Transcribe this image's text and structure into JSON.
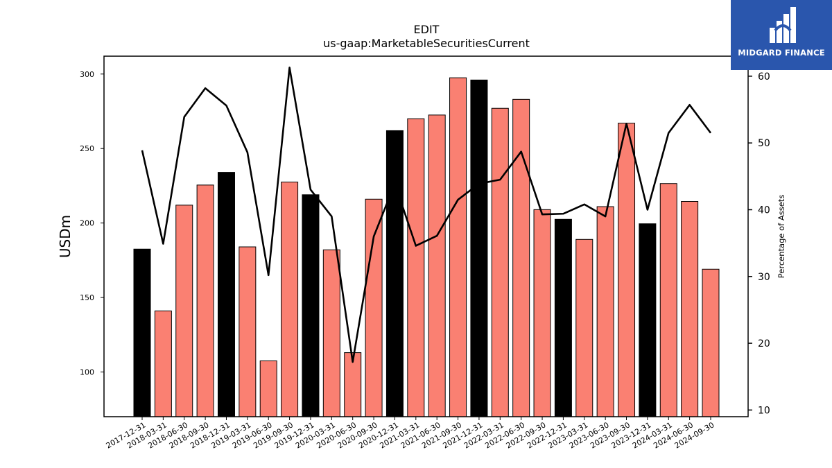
{
  "chart_data": {
    "type": "bar",
    "title": "EDIT",
    "subtitle": "us-gaap:MarketableSecuritiesCurrent",
    "ylabel": "USDm",
    "y2label": "Percentage of Assets",
    "ylim": [
      70,
      312
    ],
    "y2lim": [
      9,
      63
    ],
    "yticks": [
      100,
      150,
      200,
      250,
      300
    ],
    "y2ticks": [
      10,
      20,
      30,
      40,
      50,
      60
    ],
    "categories": [
      "2017-12-31",
      "2018-03-31",
      "2018-06-30",
      "2018-09-30",
      "2018-12-31",
      "2019-03-31",
      "2019-06-30",
      "2019-09-30",
      "2019-12-31",
      "2020-03-31",
      "2020-06-30",
      "2020-09-30",
      "2020-12-31",
      "2021-03-31",
      "2021-06-30",
      "2021-09-30",
      "2021-12-31",
      "2022-03-31",
      "2022-06-30",
      "2022-09-30",
      "2022-12-31",
      "2023-03-31",
      "2023-06-30",
      "2023-09-30",
      "2023-12-31",
      "2024-03-31",
      "2024-06-30",
      "2024-09-30"
    ],
    "series": [
      {
        "type": "bar",
        "values": [
          182.5,
          141,
          212,
          225.5,
          234,
          184,
          107.5,
          227.5,
          219,
          182,
          113,
          216,
          262,
          270,
          272.5,
          297.5,
          296,
          277,
          283,
          209,
          202.5,
          189,
          211,
          267,
          199.5,
          226.5,
          214.5,
          169
        ]
      },
      {
        "type": "line",
        "axis": "right",
        "values": [
          48.9,
          34.9,
          53.9,
          58.2,
          55.6,
          48.6,
          30.2,
          61.3,
          43.0,
          39.0,
          17.2,
          36.0,
          43.9,
          34.6,
          36.1,
          41.5,
          43.9,
          44.5,
          48.7,
          39.3,
          39.4,
          40.8,
          39.0,
          52.9,
          40.0,
          51.5,
          55.7,
          51.5
        ]
      }
    ],
    "colors": {
      "bar": "#fa8072",
      "bar_highlight": "#000000",
      "line": "#000000",
      "edge": "#000000"
    },
    "highlighted_categories": [
      "2017-12-31",
      "2018-12-31",
      "2019-12-31",
      "2020-12-31",
      "2021-12-31",
      "2022-12-31",
      "2023-12-31"
    ],
    "grid": false,
    "legend": "none"
  },
  "logo": {
    "text": "MIDGARD FINANCE",
    "background": "#2a56ad",
    "icon": "midgard-logo-icon"
  }
}
